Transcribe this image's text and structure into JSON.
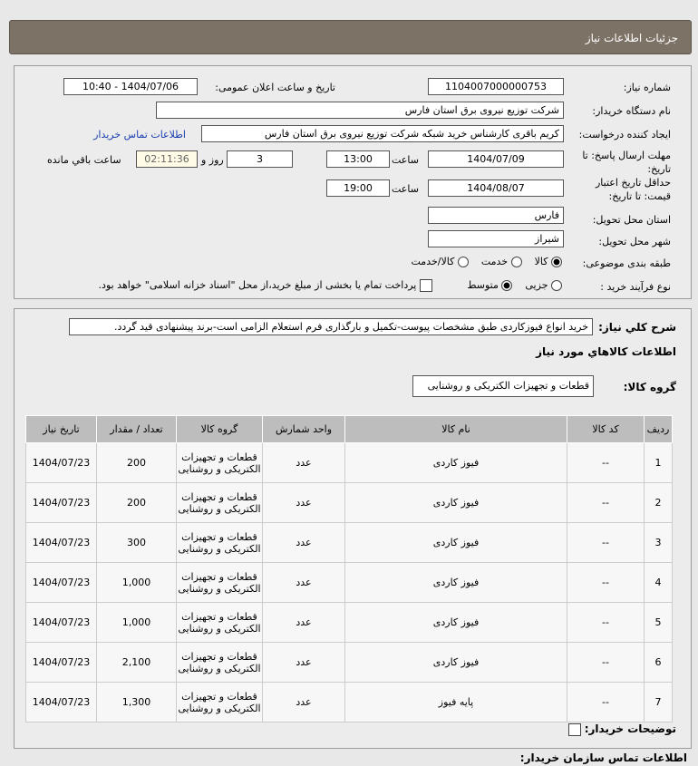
{
  "title": "جزئیات اطلاعات نیاز",
  "form": {
    "need_no_label": "شماره نیاز:",
    "need_no": "1104007000000753",
    "announce_label": "تاریخ و ساعت اعلان عمومی:",
    "announce": "1404/07/06 - 10:40",
    "buyer_label": "نام دستگاه خریدار:",
    "buyer": "شرکت توزیع نیروی برق استان فارس",
    "creator_label": "ایجاد کننده درخواست:",
    "creator": "کریم باقری کارشناس خرید شبکه شرکت توزیع نیروی برق استان فارس",
    "contact_link": "اطلاعات تماس خریدار",
    "deadline_label": "مهلت ارسال پاسخ: تا تاریخ:",
    "deadline_date": "1404/07/09",
    "time_label": "ساعت",
    "deadline_time": "13:00",
    "days": "3",
    "days_label": "روز و",
    "remaining": "02:11:36",
    "remaining_label": "ساعت باقي مانده",
    "validity_label": "حداقل تاریخ اعتبار قیمت: تا تاریخ:",
    "validity_date": "1404/08/07",
    "validity_time": "19:00",
    "province_label": "استان محل تحویل:",
    "province": "فارس",
    "city_label": "شهر محل تحویل:",
    "city": "شیراز",
    "category_label": "طبقه بندی موضوعی:",
    "category_options": [
      "کالا",
      "خدمت",
      "کالا/خدمت"
    ],
    "category_selected": "کالا",
    "process_label": "نوع فرآیند خرید :",
    "process_options": [
      "جزیی",
      "متوسط"
    ],
    "process_selected": "متوسط",
    "payment_note": "پرداخت تمام یا بخشی از مبلغ خرید،از محل \"اسناد خزانه اسلامی\" خواهد بود."
  },
  "summary_label": "شرح كلي نياز:",
  "summary": "خرید انواع فیوزکاردی طبق مشخصات پیوست-تکمیل و بارگذاری فرم استعلام الزامی است-برند پیشنهادی قید گردد.",
  "goods_title": "اطلاعات كالاهاي مورد نياز",
  "group_label": "گروه کالا:",
  "group": "قطعات و تجهیزات الکتریکی و روشنایی",
  "table": {
    "headers": [
      "ردیف",
      "کد کالا",
      "نام کالا",
      "واحد شمارش",
      "گروه کالا",
      "تعداد / مقدار",
      "تاریخ نیاز"
    ],
    "rows": [
      [
        "1",
        "--",
        "فیوز کاردی",
        "عدد",
        "قطعات و تجهیزات الکتریکی و روشنایی",
        "200",
        "1404/07/23"
      ],
      [
        "2",
        "--",
        "فیوز کاردی",
        "عدد",
        "قطعات و تجهیزات الکتریکی و روشنایی",
        "200",
        "1404/07/23"
      ],
      [
        "3",
        "--",
        "فیوز کاردی",
        "عدد",
        "قطعات و تجهیزات الکتریکی و روشنایی",
        "300",
        "1404/07/23"
      ],
      [
        "4",
        "--",
        "فیوز کاردی",
        "عدد",
        "قطعات و تجهیزات الکتریکی و روشنایی",
        "1,000",
        "1404/07/23"
      ],
      [
        "5",
        "--",
        "فیوز کاردی",
        "عدد",
        "قطعات و تجهیزات الکتریکی و روشنایی",
        "1,000",
        "1404/07/23"
      ],
      [
        "6",
        "--",
        "فیوز کاردی",
        "عدد",
        "قطعات و تجهیزات الکتریکی و روشنایی",
        "2,100",
        "1404/07/23"
      ],
      [
        "7",
        "--",
        "پایه فیوز",
        "عدد",
        "قطعات و تجهیزات الکتریکی و روشنایی",
        "1,300",
        "1404/07/23"
      ]
    ]
  },
  "buyer_notes_label": "توضیحات خریدار:",
  "org_contact_label": "اطلاعات تماس سازمان خریدار:"
}
